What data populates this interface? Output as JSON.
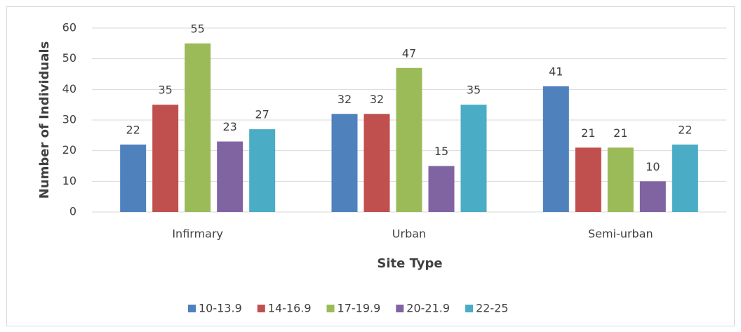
{
  "chart_data": {
    "type": "bar",
    "xlabel": "Site Type",
    "ylabel": "Number of Individuals",
    "categories": [
      "Infirmary",
      "Urban",
      "Semi-urban"
    ],
    "series": [
      {
        "name": "10-13.9",
        "color": "#4f81bd",
        "values": [
          22,
          32,
          41
        ]
      },
      {
        "name": "14-16.9",
        "color": "#c0504d",
        "values": [
          35,
          32,
          21
        ]
      },
      {
        "name": "17-19.9",
        "color": "#9bbb59",
        "values": [
          55,
          47,
          21
        ]
      },
      {
        "name": "20-21.9",
        "color": "#8064a2",
        "values": [
          23,
          15,
          10
        ]
      },
      {
        "name": "22-25",
        "color": "#4bacc6",
        "values": [
          27,
          35,
          22
        ]
      }
    ],
    "ylim": [
      0,
      60
    ],
    "yticks": [
      0,
      10,
      20,
      30,
      40,
      50,
      60
    ],
    "grid": true,
    "legend": "bottom"
  }
}
